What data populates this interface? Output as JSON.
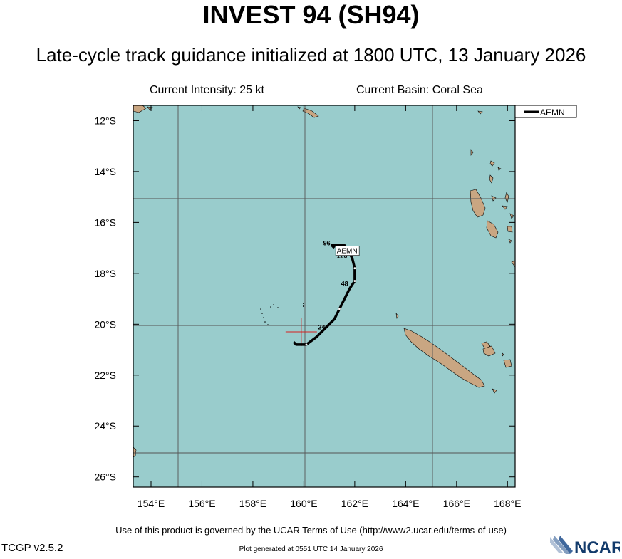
{
  "title": "INVEST 94 (SH94)",
  "subtitle": "Late-cycle track guidance initialized at 1800 UTC, 13 January 2026",
  "info": {
    "intensity": "Current Intensity: 25 kt",
    "basin": "Current Basin: Coral Sea"
  },
  "legend": {
    "model": "AEMN"
  },
  "map": {
    "lon_range": [
      153.3,
      168.3
    ],
    "lat_range": [
      -26.4,
      -11.4
    ],
    "lon_ticks": [
      "154°E",
      "156°E",
      "158°E",
      "160°E",
      "162°E",
      "164°E",
      "166°E",
      "168°E"
    ],
    "lat_ticks": [
      "12°S",
      "14°S",
      "16°S",
      "18°S",
      "20°S",
      "22°S",
      "24°S",
      "26°S"
    ],
    "ocean_color": "#99cccc",
    "land_color": "#c9a682",
    "current_position": {
      "lon": 159.9,
      "lat": -20.3
    }
  },
  "track": {
    "name": "AEMN",
    "points": [
      {
        "lon": 159.6,
        "lat": -20.7
      },
      {
        "lon": 159.7,
        "lat": -20.8
      },
      {
        "lon": 160.1,
        "lat": -20.8
      },
      {
        "lon": 160.5,
        "lat": -20.5
      },
      {
        "lon": 160.9,
        "lat": -20.1
      },
      {
        "lon": 161.2,
        "lat": -19.8
      },
      {
        "lon": 161.4,
        "lat": -19.4
      },
      {
        "lon": 161.6,
        "lat": -19.0
      },
      {
        "lon": 161.8,
        "lat": -18.6
      },
      {
        "lon": 162.0,
        "lat": -18.3
      },
      {
        "lon": 162.0,
        "lat": -17.8
      },
      {
        "lon": 161.9,
        "lat": -17.4
      },
      {
        "lon": 161.6,
        "lat": -16.9
      },
      {
        "lon": 161.1,
        "lat": -16.9
      },
      {
        "lon": 161.2,
        "lat": -17.0
      }
    ],
    "hour_labels": [
      {
        "text": "24",
        "lon": 160.7,
        "lat": -20.2
      },
      {
        "text": "48",
        "lon": 161.6,
        "lat": -18.5
      },
      {
        "text": "96",
        "lon": 160.9,
        "lat": -16.9
      },
      {
        "text": "120",
        "lon": 161.5,
        "lat": -17.4
      }
    ],
    "end_label": {
      "text": "AEMN",
      "lon": 161.7,
      "lat": -17.1
    }
  },
  "footer": {
    "terms": "Use of this product is governed by the UCAR Terms of Use (http://www2.ucar.edu/terms-of-use)",
    "version": "TCGP v2.5.2",
    "generated": "Plot generated at 0551 UTC   14 January 2026",
    "logo": "NCAR"
  }
}
